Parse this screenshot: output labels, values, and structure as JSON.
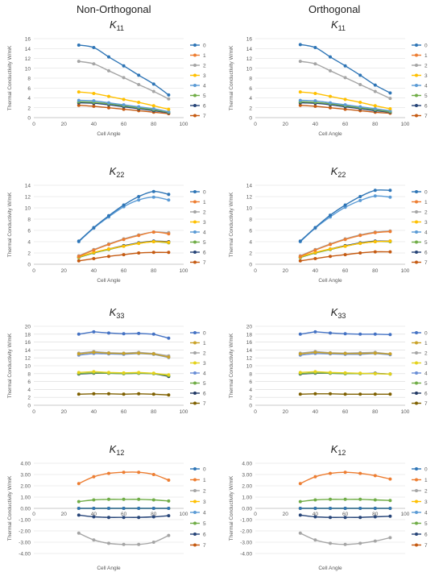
{
  "column_titles": [
    "Non-Orthogonal",
    "Orthogonal"
  ],
  "colors": {
    "s0": "#2e75b6",
    "s1": "#ed7d31",
    "s2": "#a5a5a5",
    "s3": "#ffc000",
    "s4": "#5b9bd5",
    "s5": "#70ad47",
    "s6": "#264478",
    "s7": "#c55a11",
    "k33_0": "#4472c4",
    "k33_1": "#c9a227",
    "k33_2": "#a5a5a5",
    "k33_3": "#e4d21b",
    "k33_4": "#6b8fd6",
    "k33_5": "#70ad47",
    "k33_6": "#203864",
    "k33_7": "#7f6000"
  },
  "chart_data": [
    {
      "id": "k11-non-orthogonal",
      "type": "line",
      "title": "K11",
      "title_main": "K",
      "title_sub": "11",
      "xlabel": "Cell Angle",
      "ylabel": "Thermal Conductivity W/mK",
      "xlim": [
        0,
        100
      ],
      "ylim": [
        0,
        16
      ],
      "xticks": [
        "0",
        "20",
        "40",
        "60",
        "80",
        "100"
      ],
      "yticks": [
        "0",
        "2",
        "4",
        "6",
        "8",
        "10",
        "12",
        "14",
        "16"
      ],
      "x": [
        30,
        40,
        50,
        60,
        70,
        80,
        90
      ],
      "series": [
        {
          "name": "0",
          "values": [
            14.7,
            14.2,
            12.3,
            10.5,
            8.6,
            6.8,
            4.6
          ]
        },
        {
          "name": "1",
          "values": [
            null,
            null,
            null,
            null,
            null,
            null,
            null
          ]
        },
        {
          "name": "2",
          "values": [
            11.4,
            10.9,
            9.5,
            8.1,
            6.7,
            5.3,
            3.8
          ]
        },
        {
          "name": "3",
          "values": [
            5.2,
            4.9,
            4.3,
            3.7,
            3.1,
            2.4,
            1.7
          ]
        },
        {
          "name": "4",
          "values": [
            3.5,
            3.4,
            3.0,
            2.6,
            2.2,
            1.8,
            1.2
          ]
        },
        {
          "name": "5",
          "values": [
            3.2,
            3.1,
            2.8,
            2.4,
            2.0,
            1.6,
            1.1
          ]
        },
        {
          "name": "6",
          "values": [
            3.0,
            2.9,
            2.6,
            2.2,
            1.8,
            1.4,
            1.0
          ]
        },
        {
          "name": "7",
          "values": [
            2.5,
            2.3,
            2.0,
            1.7,
            1.4,
            1.1,
            0.8
          ]
        }
      ]
    },
    {
      "id": "k11-orthogonal",
      "type": "line",
      "title": "K11",
      "title_main": "K",
      "title_sub": "11",
      "xlabel": "Cell Angle",
      "ylabel": "Thermal Conductivity W/mK",
      "xlim": [
        0,
        100
      ],
      "ylim": [
        0,
        16
      ],
      "xticks": [
        "0",
        "20",
        "40",
        "60",
        "80",
        "100"
      ],
      "yticks": [
        "0",
        "2",
        "4",
        "6",
        "8",
        "10",
        "12",
        "14",
        "16"
      ],
      "x": [
        30,
        40,
        50,
        60,
        70,
        80,
        90
      ],
      "series": [
        {
          "name": "0",
          "values": [
            14.8,
            14.2,
            12.3,
            10.5,
            8.6,
            6.6,
            5.0
          ]
        },
        {
          "name": "1",
          "values": [
            null,
            null,
            null,
            null,
            null,
            null,
            null
          ]
        },
        {
          "name": "2",
          "values": [
            11.4,
            10.9,
            9.5,
            8.1,
            6.7,
            5.3,
            3.9
          ]
        },
        {
          "name": "3",
          "values": [
            5.2,
            4.9,
            4.3,
            3.7,
            3.1,
            2.4,
            1.8
          ]
        },
        {
          "name": "4",
          "values": [
            3.5,
            3.4,
            3.0,
            2.6,
            2.2,
            1.8,
            1.4
          ]
        },
        {
          "name": "5",
          "values": [
            3.2,
            3.1,
            2.8,
            2.4,
            2.0,
            1.6,
            1.2
          ]
        },
        {
          "name": "6",
          "values": [
            3.0,
            2.9,
            2.6,
            2.2,
            1.8,
            1.4,
            1.1
          ]
        },
        {
          "name": "7",
          "values": [
            2.5,
            2.3,
            2.0,
            1.7,
            1.4,
            1.1,
            0.9
          ]
        }
      ]
    },
    {
      "id": "k22-non-orthogonal",
      "type": "line",
      "title": "K22",
      "title_main": "K",
      "title_sub": "22",
      "xlabel": "Cell Angle",
      "ylabel": "Thermal Conductivity W/mK",
      "xlim": [
        0,
        100
      ],
      "ylim": [
        0,
        14
      ],
      "xticks": [
        "0",
        "20",
        "40",
        "60",
        "80",
        "100"
      ],
      "yticks": [
        "0",
        "2",
        "4",
        "6",
        "8",
        "10",
        "12",
        "14"
      ],
      "x": [
        30,
        40,
        50,
        60,
        70,
        80,
        90
      ],
      "series": [
        {
          "name": "0",
          "values": [
            4.1,
            6.5,
            8.6,
            10.5,
            12.0,
            12.9,
            12.4
          ]
        },
        {
          "name": "1",
          "values": [
            1.4,
            2.5,
            3.5,
            4.4,
            5.1,
            5.7,
            5.4
          ]
        },
        {
          "name": "2",
          "values": [
            1.5,
            2.6,
            3.6,
            4.5,
            5.2,
            5.7,
            5.6
          ]
        },
        {
          "name": "3",
          "values": [
            1.3,
            2.1,
            2.7,
            3.2,
            3.7,
            4.0,
            3.9
          ]
        },
        {
          "name": "4",
          "values": [
            4.0,
            6.4,
            8.4,
            10.2,
            11.4,
            11.9,
            11.4
          ]
        },
        {
          "name": "5",
          "values": [
            1.2,
            2.0,
            2.6,
            3.2,
            3.7,
            4.0,
            3.8
          ]
        },
        {
          "name": "6",
          "values": [
            1.2,
            2.0,
            2.7,
            3.3,
            3.8,
            4.1,
            4.0
          ]
        },
        {
          "name": "7",
          "values": [
            0.6,
            1.0,
            1.4,
            1.7,
            2.0,
            2.1,
            2.1
          ]
        }
      ]
    },
    {
      "id": "k22-orthogonal",
      "type": "line",
      "title": "K22",
      "title_main": "K",
      "title_sub": "22",
      "xlabel": "Cell Angle",
      "ylabel": "Thermal Conductivity W/mK",
      "xlim": [
        0,
        100
      ],
      "ylim": [
        0,
        14
      ],
      "xticks": [
        "0",
        "20",
        "40",
        "60",
        "80",
        "100"
      ],
      "yticks": [
        "0",
        "2",
        "4",
        "6",
        "8",
        "10",
        "12",
        "14"
      ],
      "x": [
        30,
        40,
        50,
        60,
        70,
        80,
        90
      ],
      "series": [
        {
          "name": "0",
          "values": [
            4.1,
            6.5,
            8.7,
            10.5,
            12.0,
            13.1,
            13.1
          ]
        },
        {
          "name": "1",
          "values": [
            1.4,
            2.5,
            3.5,
            4.4,
            5.1,
            5.6,
            5.8
          ]
        },
        {
          "name": "2",
          "values": [
            1.5,
            2.6,
            3.6,
            4.5,
            5.2,
            5.7,
            5.9
          ]
        },
        {
          "name": "3",
          "values": [
            1.3,
            2.1,
            2.7,
            3.2,
            3.7,
            4.0,
            4.1
          ]
        },
        {
          "name": "4",
          "values": [
            4.0,
            6.4,
            8.4,
            10.1,
            11.3,
            12.1,
            11.9
          ]
        },
        {
          "name": "5",
          "values": [
            1.2,
            2.0,
            2.6,
            3.2,
            3.7,
            4.0,
            4.0
          ]
        },
        {
          "name": "6",
          "values": [
            1.2,
            2.0,
            2.7,
            3.3,
            3.8,
            4.1,
            4.1
          ]
        },
        {
          "name": "7",
          "values": [
            0.6,
            1.0,
            1.4,
            1.7,
            2.0,
            2.2,
            2.2
          ]
        }
      ]
    },
    {
      "id": "k33-non-orthogonal",
      "type": "line",
      "title": "K33",
      "title_main": "K",
      "title_sub": "33",
      "xlabel": "",
      "ylabel": "Thermal Conductivity W/mK",
      "xlim": [
        0,
        100
      ],
      "ylim": [
        0,
        20
      ],
      "xticks": [
        "0",
        "20",
        "40",
        "60",
        "80",
        "100"
      ],
      "yticks": [
        "0",
        "2",
        "4",
        "6",
        "8",
        "10",
        "12",
        "14",
        "16",
        "18",
        "20"
      ],
      "x": [
        30,
        40,
        50,
        60,
        70,
        80,
        90
      ],
      "series": [
        {
          "name": "0",
          "values": [
            18.0,
            18.6,
            18.3,
            18.1,
            18.2,
            18.0,
            17.0
          ]
        },
        {
          "name": "1",
          "values": [
            13.0,
            13.4,
            13.2,
            13.1,
            13.2,
            13.0,
            12.2
          ]
        },
        {
          "name": "2",
          "values": [
            13.2,
            13.6,
            13.3,
            13.2,
            13.4,
            13.1,
            12.5
          ]
        },
        {
          "name": "3",
          "values": [
            8.3,
            8.5,
            8.3,
            8.2,
            8.3,
            8.1,
            7.7
          ]
        },
        {
          "name": "4",
          "values": [
            12.7,
            13.1,
            13.0,
            12.9,
            13.1,
            12.9,
            12.1
          ]
        },
        {
          "name": "5",
          "values": [
            8.0,
            8.2,
            8.1,
            8.0,
            8.1,
            8.0,
            7.5
          ]
        },
        {
          "name": "6",
          "values": [
            7.9,
            8.1,
            8.1,
            8.0,
            8.1,
            8.0,
            7.3
          ]
        },
        {
          "name": "7",
          "values": [
            2.8,
            2.9,
            2.9,
            2.8,
            2.9,
            2.8,
            2.6
          ]
        }
      ]
    },
    {
      "id": "k33-orthogonal",
      "type": "line",
      "title": "K33",
      "title_main": "K",
      "title_sub": "33",
      "xlabel": "",
      "ylabel": "Thermal Conductivity W/mK",
      "xlim": [
        0,
        100
      ],
      "ylim": [
        0,
        20
      ],
      "xticks": [
        "0",
        "20",
        "40",
        "60",
        "80",
        "100"
      ],
      "yticks": [
        "0",
        "2",
        "4",
        "6",
        "8",
        "10",
        "12",
        "14",
        "16",
        "18",
        "20"
      ],
      "x": [
        30,
        40,
        50,
        60,
        70,
        80,
        90
      ],
      "series": [
        {
          "name": "0",
          "values": [
            18.0,
            18.6,
            18.3,
            18.1,
            18.0,
            18.0,
            17.9
          ]
        },
        {
          "name": "1",
          "values": [
            13.0,
            13.4,
            13.2,
            13.1,
            13.1,
            13.2,
            13.0
          ]
        },
        {
          "name": "2",
          "values": [
            13.2,
            13.6,
            13.3,
            13.2,
            13.3,
            13.4,
            13.0
          ]
        },
        {
          "name": "3",
          "values": [
            8.3,
            8.5,
            8.3,
            8.2,
            8.1,
            8.0,
            7.9
          ]
        },
        {
          "name": "4",
          "values": [
            12.7,
            13.1,
            13.0,
            12.9,
            12.9,
            13.1,
            12.8
          ]
        },
        {
          "name": "5",
          "values": [
            8.0,
            8.2,
            8.1,
            8.0,
            8.0,
            8.0,
            7.9
          ]
        },
        {
          "name": "6",
          "values": [
            7.9,
            8.1,
            8.1,
            8.0,
            8.0,
            8.1,
            7.9
          ]
        },
        {
          "name": "7",
          "values": [
            2.8,
            2.9,
            2.9,
            2.8,
            2.8,
            2.8,
            2.8
          ]
        }
      ]
    },
    {
      "id": "k12-non-orthogonal",
      "type": "line",
      "title": "K12",
      "title_main": "K",
      "title_sub": "12",
      "xlabel": "Cell Angle",
      "ylabel": "Thermal Conductivity W/mK",
      "xlim": [
        0,
        100
      ],
      "ylim": [
        -4,
        4
      ],
      "xticks": [
        "0",
        "20",
        "40",
        "60",
        "80",
        "100"
      ],
      "yticks": [
        "-4.00",
        "-3.00",
        "-2.00",
        "-1.00",
        "0.00",
        "1.00",
        "2.00",
        "3.00",
        "4.00"
      ],
      "ytick_values": [
        -4,
        -3,
        -2,
        -1,
        0,
        1,
        2,
        3,
        4
      ],
      "x": [
        30,
        40,
        50,
        60,
        70,
        80,
        90
      ],
      "series": [
        {
          "name": "0",
          "values": [
            0.0,
            0.0,
            0.0,
            0.0,
            0.0,
            0.0,
            0.0
          ]
        },
        {
          "name": "1",
          "values": [
            2.2,
            2.8,
            3.1,
            3.2,
            3.2,
            3.0,
            2.5
          ]
        },
        {
          "name": "2",
          "values": [
            -2.2,
            -2.8,
            -3.1,
            -3.2,
            -3.2,
            -3.0,
            -2.4
          ]
        },
        {
          "name": "3",
          "values": [
            0.0,
            0.0,
            0.0,
            0.0,
            0.0,
            0.0,
            0.0
          ]
        },
        {
          "name": "4",
          "values": [
            0.0,
            0.0,
            0.0,
            0.0,
            0.0,
            0.0,
            0.0
          ]
        },
        {
          "name": "5",
          "values": [
            0.6,
            0.75,
            0.8,
            0.8,
            0.8,
            0.75,
            0.65
          ]
        },
        {
          "name": "6",
          "values": [
            -0.6,
            -0.75,
            -0.8,
            -0.8,
            -0.8,
            -0.75,
            -0.65
          ]
        },
        {
          "name": "7",
          "values": [
            0.0,
            0.0,
            0.0,
            0.0,
            0.0,
            0.0,
            0.0
          ]
        }
      ]
    },
    {
      "id": "k12-orthogonal",
      "type": "line",
      "title": "K12",
      "title_main": "K",
      "title_sub": "12",
      "xlabel": "Cell Angle",
      "ylabel": "Thermal Conductivity W/mK",
      "xlim": [
        0,
        100
      ],
      "ylim": [
        -4,
        4
      ],
      "xticks": [
        "0",
        "20",
        "40",
        "60",
        "80",
        "100"
      ],
      "yticks": [
        "-4.00",
        "-3.00",
        "-2.00",
        "-1.00",
        "0.00",
        "1.00",
        "2.00",
        "3.00",
        "4.00"
      ],
      "ytick_values": [
        -4,
        -3,
        -2,
        -1,
        0,
        1,
        2,
        3,
        4
      ],
      "x": [
        30,
        40,
        50,
        60,
        70,
        80,
        90
      ],
      "series": [
        {
          "name": "0",
          "values": [
            0.0,
            0.0,
            0.0,
            0.0,
            0.0,
            0.0,
            0.0
          ]
        },
        {
          "name": "1",
          "values": [
            2.2,
            2.8,
            3.1,
            3.2,
            3.1,
            2.9,
            2.6
          ]
        },
        {
          "name": "2",
          "values": [
            -2.2,
            -2.8,
            -3.1,
            -3.2,
            -3.1,
            -2.9,
            -2.6
          ]
        },
        {
          "name": "3",
          "values": [
            0.0,
            0.0,
            0.0,
            0.0,
            0.0,
            0.0,
            0.0
          ]
        },
        {
          "name": "4",
          "values": [
            0.0,
            0.0,
            0.0,
            0.0,
            0.0,
            0.0,
            0.0
          ]
        },
        {
          "name": "5",
          "values": [
            0.6,
            0.75,
            0.8,
            0.8,
            0.8,
            0.75,
            0.7
          ]
        },
        {
          "name": "6",
          "values": [
            -0.6,
            -0.75,
            -0.8,
            -0.8,
            -0.8,
            -0.75,
            -0.7
          ]
        },
        {
          "name": "7",
          "values": [
            0.0,
            0.0,
            0.0,
            0.0,
            0.0,
            0.0,
            0.0
          ]
        }
      ]
    }
  ]
}
